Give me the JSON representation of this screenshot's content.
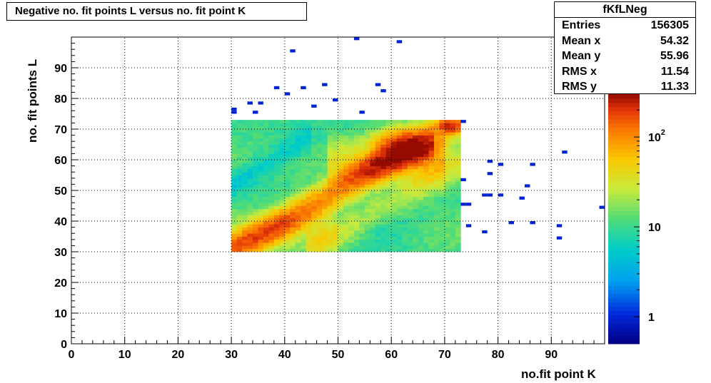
{
  "title": "Negative no. fit points L versus no. fit point K",
  "stats": {
    "name": "fKfLNeg",
    "rows": [
      {
        "label": "Entries",
        "value": "156305"
      },
      {
        "label": "Mean x",
        "value": "54.32"
      },
      {
        "label": "Mean y",
        "value": "55.96"
      },
      {
        "label": "RMS x",
        "value": "11.54"
      },
      {
        "label": "RMS y",
        "value": "11.33"
      }
    ]
  },
  "chart_data": {
    "type": "heatmap",
    "xlabel": "no.fit point K",
    "ylabel": "no. fit points  L",
    "xlim": [
      0,
      100
    ],
    "ylim": [
      0,
      100
    ],
    "x_ticks": [
      0,
      10,
      20,
      30,
      40,
      50,
      60,
      70,
      80,
      90
    ],
    "y_ticks": [
      0,
      10,
      20,
      30,
      40,
      50,
      60,
      70,
      80,
      90
    ],
    "grid": true,
    "z_scale": "log",
    "z_range": [
      0.5,
      300
    ],
    "z_tick_labels": [
      "1",
      "10",
      "10^2"
    ],
    "main_region": {
      "x": [
        30,
        73
      ],
      "y": [
        30,
        73
      ]
    },
    "hot_spots": [
      {
        "x": 63,
        "y": 64,
        "z": 250
      },
      {
        "x": 71,
        "y": 71,
        "z": 200
      }
    ],
    "outlier_cells": [
      [
        30,
        76
      ],
      [
        30,
        75
      ],
      [
        33,
        78
      ],
      [
        34,
        75
      ],
      [
        35,
        78
      ],
      [
        38,
        83
      ],
      [
        40,
        81
      ],
      [
        41,
        95
      ],
      [
        43,
        83
      ],
      [
        45,
        77
      ],
      [
        47,
        84
      ],
      [
        49,
        79
      ],
      [
        53,
        99
      ],
      [
        54,
        75
      ],
      [
        57,
        84
      ],
      [
        58,
        82
      ],
      [
        61,
        98
      ],
      [
        73,
        72
      ],
      [
        73,
        53
      ],
      [
        73,
        45
      ],
      [
        74,
        45
      ],
      [
        74,
        38
      ],
      [
        77,
        36
      ],
      [
        77,
        48
      ],
      [
        78,
        48
      ],
      [
        78,
        55
      ],
      [
        78,
        59
      ],
      [
        80,
        58
      ],
      [
        80,
        48
      ],
      [
        82,
        39
      ],
      [
        84,
        47
      ],
      [
        85,
        51
      ],
      [
        86,
        58
      ],
      [
        86,
        39
      ],
      [
        91,
        38
      ],
      [
        91,
        34
      ],
      [
        92,
        62
      ],
      [
        99,
        44
      ]
    ]
  }
}
